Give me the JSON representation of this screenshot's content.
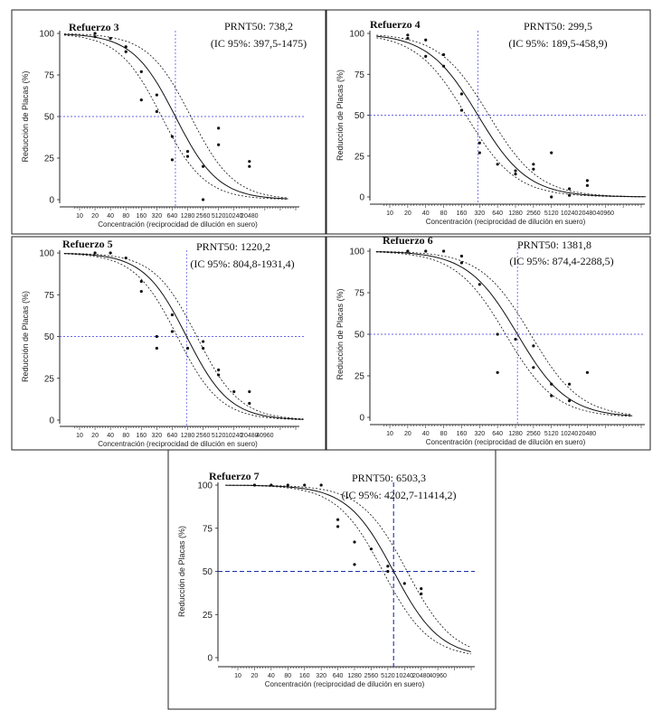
{
  "chart_data": [
    {
      "type": "scatter",
      "title": "Refuerzo 3",
      "annotation_line1": "PRNT50: 738,2",
      "annotation_line2": "(IC 95%: 397,5-1475)",
      "xlabel": "Concentración (reciprocidad de dilución en suero)",
      "ylabel": "Reducción de Placas (%)",
      "ylim": [
        0,
        100
      ],
      "yticks": [
        0,
        25,
        50,
        75,
        100
      ],
      "xtick_labels": [
        "10",
        "20",
        "40",
        "80",
        "160",
        "320",
        "640",
        "1280",
        "2560",
        "5120",
        "10240",
        "20480"
      ],
      "prnt50": 738.2,
      "ci": [
        397.5,
        1475
      ],
      "points": [
        [
          20,
          100
        ],
        [
          20,
          98
        ],
        [
          40,
          97
        ],
        [
          80,
          92
        ],
        [
          80,
          89
        ],
        [
          160,
          77
        ],
        [
          160,
          60
        ],
        [
          320,
          63
        ],
        [
          320,
          53
        ],
        [
          640,
          24
        ],
        [
          640,
          38
        ],
        [
          1280,
          29
        ],
        [
          1280,
          26
        ],
        [
          2560,
          20
        ],
        [
          2560,
          0
        ],
        [
          5120,
          33
        ],
        [
          5120,
          43
        ],
        [
          20480,
          23
        ],
        [
          20480,
          20
        ]
      ]
    },
    {
      "type": "scatter",
      "title": "Refuerzo 4",
      "annotation_line1": "PRNT50: 299,5",
      "annotation_line2": "(IC 95%: 189,5-458,9)",
      "xlabel": "Concentración (reciprocidad de dilución en suero)",
      "ylabel": "Reducción de Placas (%)",
      "ylim": [
        0,
        100
      ],
      "yticks": [
        0,
        25,
        50,
        75,
        100
      ],
      "xtick_labels": [
        "10",
        "20",
        "40",
        "80",
        "160",
        "320",
        "640",
        "1280",
        "2560",
        "5120",
        "10240",
        "20480",
        "40960"
      ],
      "prnt50": 299.5,
      "ci": [
        189.5,
        458.9
      ],
      "points": [
        [
          20,
          99
        ],
        [
          20,
          97
        ],
        [
          40,
          96
        ],
        [
          40,
          86
        ],
        [
          80,
          87
        ],
        [
          80,
          80
        ],
        [
          160,
          63
        ],
        [
          160,
          53
        ],
        [
          320,
          33
        ],
        [
          320,
          27
        ],
        [
          640,
          20
        ],
        [
          1280,
          16
        ],
        [
          1280,
          14
        ],
        [
          2560,
          20
        ],
        [
          2560,
          17
        ],
        [
          5120,
          27
        ],
        [
          5120,
          0
        ],
        [
          10240,
          5
        ],
        [
          10240,
          1
        ],
        [
          20480,
          10
        ],
        [
          20480,
          7
        ]
      ]
    },
    {
      "type": "scatter",
      "title": "Refuerzo 5",
      "annotation_line1": "PRNT50: 1220,2",
      "annotation_line2": "(IC 95%: 804,8-1931,4)",
      "xlabel": "Concentración (reciprocidad de dilución en suero)",
      "ylabel": "Reducción de Placas (%)",
      "ylim": [
        0,
        100
      ],
      "yticks": [
        0,
        25,
        50,
        75,
        100
      ],
      "xtick_labels": [
        "10",
        "20",
        "40",
        "80",
        "160",
        "320",
        "640",
        "1280",
        "2560",
        "5120",
        "10240",
        "20480",
        "40960"
      ],
      "prnt50": 1220.2,
      "ci": [
        804.8,
        1931.4
      ],
      "points": [
        [
          20,
          100
        ],
        [
          40,
          100
        ],
        [
          80,
          97
        ],
        [
          160,
          83
        ],
        [
          160,
          77
        ],
        [
          320,
          50
        ],
        [
          320,
          43
        ],
        [
          640,
          63
        ],
        [
          640,
          53
        ],
        [
          1280,
          43
        ],
        [
          2560,
          47
        ],
        [
          2560,
          43
        ],
        [
          5120,
          30
        ],
        [
          5120,
          27
        ],
        [
          10240,
          17
        ],
        [
          20480,
          17
        ],
        [
          20480,
          10
        ]
      ]
    },
    {
      "type": "scatter",
      "title": "Refuerzo 6",
      "annotation_line1": "PRNT50: 1381,8",
      "annotation_line2": "(IC 95%: 874,4-2288,5)",
      "xlabel": "Concentración (reciprocidad de dilución en suero)",
      "ylabel": "Reducción de Placas (%)",
      "ylim": [
        0,
        100
      ],
      "yticks": [
        0,
        25,
        50,
        75,
        100
      ],
      "xtick_labels": [
        "10",
        "20",
        "40",
        "80",
        "160",
        "320",
        "640",
        "1280",
        "2560",
        "5120",
        "10240",
        "20480"
      ],
      "prnt50": 1381.8,
      "ci": [
        874.4,
        2288.5
      ],
      "points": [
        [
          20,
          100
        ],
        [
          40,
          100
        ],
        [
          80,
          100
        ],
        [
          160,
          97
        ],
        [
          160,
          93
        ],
        [
          320,
          80
        ],
        [
          640,
          50
        ],
        [
          640,
          27
        ],
        [
          1280,
          47
        ],
        [
          2560,
          43
        ],
        [
          2560,
          30
        ],
        [
          5120,
          20
        ],
        [
          5120,
          13
        ],
        [
          10240,
          20
        ],
        [
          10240,
          10
        ],
        [
          20480,
          27
        ]
      ]
    },
    {
      "type": "scatter",
      "title": "Refuerzo 7",
      "annotation_line1": "PRNT50: 6503,3",
      "annotation_line2": "(IC 95%: 4202,7-11414,2)",
      "xlabel": "Concentración (reciprocidad de dilución en suero)",
      "ylabel": "Reducción de Placas (%)",
      "ylim": [
        0,
        100
      ],
      "yticks": [
        0,
        25,
        50,
        75,
        100
      ],
      "xtick_labels": [
        "10",
        "20",
        "40",
        "80",
        "160",
        "320",
        "640",
        "1280",
        "2560",
        "5120",
        "10240",
        "20480",
        "40960"
      ],
      "prnt50": 6503.3,
      "ci": [
        4202.7,
        11414.2
      ],
      "points": [
        [
          20,
          100
        ],
        [
          40,
          100
        ],
        [
          80,
          100
        ],
        [
          160,
          100
        ],
        [
          320,
          100
        ],
        [
          640,
          76
        ],
        [
          640,
          80
        ],
        [
          1280,
          54
        ],
        [
          1280,
          67
        ],
        [
          2560,
          63
        ],
        [
          5120,
          53
        ],
        [
          5120,
          50
        ],
        [
          10240,
          43
        ],
        [
          20480,
          40
        ],
        [
          20480,
          37
        ]
      ]
    }
  ]
}
